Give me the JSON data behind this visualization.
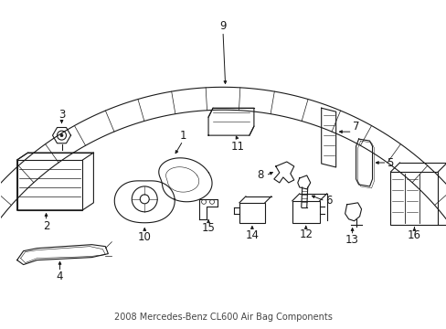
{
  "bg_color": "#ffffff",
  "line_color": "#1a1a1a",
  "lw": 0.8,
  "figsize": [
    4.89,
    3.6
  ],
  "dpi": 100
}
